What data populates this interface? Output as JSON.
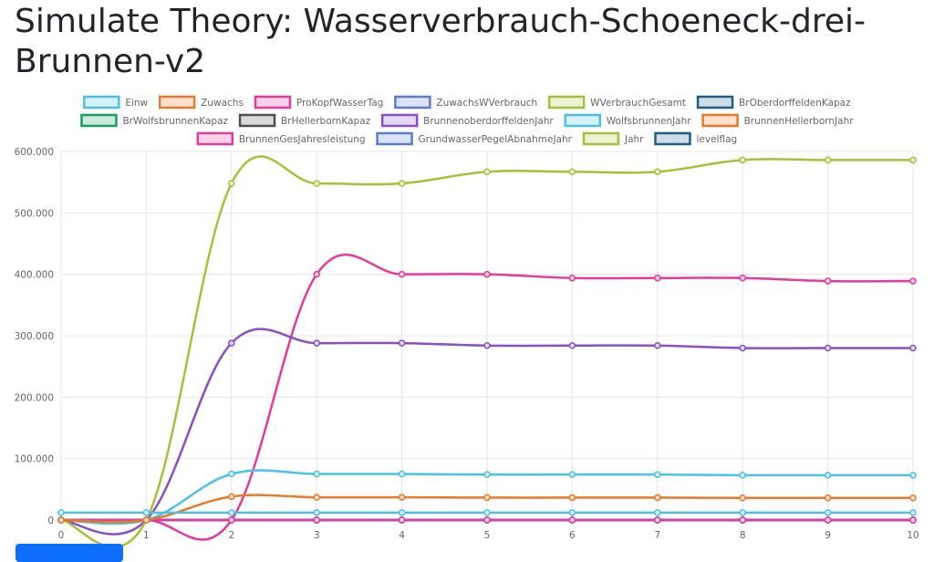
{
  "header": {
    "title": "Simulate Theory: Wasserverbrauch-Schoeneck-drei-Brunnen-v2"
  },
  "chart_data": {
    "type": "line",
    "x": [
      0,
      1,
      2,
      3,
      4,
      5,
      6,
      7,
      8,
      9,
      10
    ],
    "x_ticks": [
      "0",
      "1",
      "2",
      "3",
      "4",
      "5",
      "6",
      "7",
      "8",
      "9",
      "10"
    ],
    "ylim": [
      0,
      600000
    ],
    "y_ticks": [
      {
        "value": 0,
        "label": "0"
      },
      {
        "value": 100000,
        "label": "100.000"
      },
      {
        "value": 200000,
        "label": "200.000"
      },
      {
        "value": 300000,
        "label": "300.000"
      },
      {
        "value": 400000,
        "label": "400.000"
      },
      {
        "value": 500000,
        "label": "500.000"
      },
      {
        "value": 600000,
        "label": "600.000"
      }
    ],
    "grid": true,
    "legend_position": "top",
    "series": [
      {
        "name": "Einw",
        "color": "#4bc0e8",
        "values": [
          12000,
          12000,
          12000,
          12000,
          12000,
          12000,
          12000,
          12000,
          12000,
          12000,
          12000
        ]
      },
      {
        "name": "Zuwachs",
        "color": "#e8782a",
        "values": [
          0,
          0,
          38000,
          37000,
          37000,
          36500,
          36500,
          36500,
          36000,
          36000,
          36000
        ]
      },
      {
        "name": "ProKopfWasserTag",
        "color": "#e6399b",
        "values": [
          0,
          0,
          0,
          0,
          0,
          0,
          0,
          0,
          0,
          0,
          0
        ]
      },
      {
        "name": "ZuwachsWVerbrauch",
        "color": "#5b7cc9",
        "values": [
          0,
          0,
          0,
          0,
          0,
          0,
          0,
          0,
          0,
          0,
          0
        ]
      },
      {
        "name": "WVerbrauchGesamt",
        "color": "#a8bf3a",
        "values": [
          0,
          0,
          548000,
          548000,
          548000,
          567000,
          567000,
          567000,
          586000,
          586000,
          586000
        ]
      },
      {
        "name": "BrOberdorffeldenKapaz",
        "color": "#1f5f86",
        "values": [
          0,
          0,
          0,
          0,
          0,
          0,
          0,
          0,
          0,
          0,
          0
        ]
      },
      {
        "name": "BrWolfsbrunnenKapaz",
        "color": "#19a05f",
        "values": [
          0,
          0,
          0,
          0,
          0,
          0,
          0,
          0,
          0,
          0,
          0
        ]
      },
      {
        "name": "BrHellerbornKapaz",
        "color": "#505050",
        "values": [
          0,
          0,
          0,
          0,
          0,
          0,
          0,
          0,
          0,
          0,
          0
        ]
      },
      {
        "name": "BrunnenoberdorffeldenJahr",
        "color": "#8a4fc1",
        "values": [
          0,
          0,
          288000,
          288000,
          288000,
          284000,
          284000,
          284000,
          280000,
          280000,
          280000
        ]
      },
      {
        "name": "WolfsbrunnenJahr",
        "color": "#4bc0e8",
        "values": [
          0,
          0,
          75000,
          75000,
          75000,
          74000,
          74000,
          74000,
          73000,
          73000,
          73000
        ]
      },
      {
        "name": "BrunnenHellerbornJahr",
        "color": "#e8782a",
        "values": [
          0,
          0,
          0,
          0,
          0,
          0,
          0,
          0,
          0,
          0,
          0
        ]
      },
      {
        "name": "BrunnenGesJahresleistung",
        "color": "#e6399b",
        "values": [
          0,
          0,
          0,
          400000,
          400000,
          400000,
          394000,
          394000,
          394000,
          389000,
          389000
        ]
      },
      {
        "name": "GrundwasserPegelAbnahmeJahr",
        "color": "#5b7cc9",
        "values": [
          0,
          0,
          0,
          0,
          0,
          0,
          0,
          0,
          0,
          0,
          0
        ]
      },
      {
        "name": "Jahr",
        "color": "#a8bf3a",
        "values": [
          0,
          0,
          0,
          0,
          0,
          0,
          0,
          0,
          0,
          0,
          0
        ]
      },
      {
        "name": "levelflag",
        "color": "#1f5f86",
        "values": [
          0,
          0,
          0,
          0,
          0,
          0,
          0,
          0,
          0,
          0,
          0
        ]
      }
    ]
  }
}
